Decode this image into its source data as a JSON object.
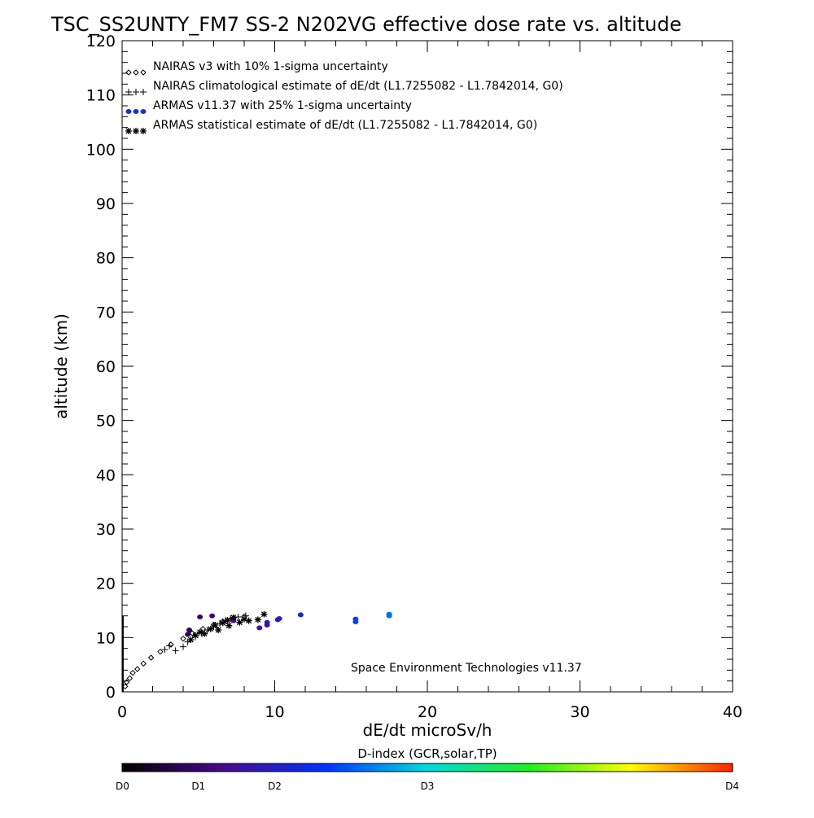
{
  "chart_data": {
    "type": "scatter",
    "title": "TSC_SS2UNTY_FM7 SS-2 N202VG effective dose rate vs. altitude",
    "xlabel": "dE/dt microSv/h",
    "ylabel": "altitude (km)",
    "xlim": [
      0,
      40
    ],
    "ylim": [
      0,
      120
    ],
    "x_ticks": [
      0,
      10,
      20,
      30,
      40
    ],
    "y_ticks": [
      0,
      10,
      20,
      30,
      40,
      50,
      60,
      70,
      80,
      90,
      100,
      110,
      120
    ],
    "grid": false,
    "legend_position": "top-left",
    "credit": "Space Environment Technologies v11.37",
    "legend": [
      {
        "label": "NAIRAS v3 with 10% 1-sigma uncertainty",
        "symbol": "diamond",
        "color": "#000000"
      },
      {
        "label": "NAIRAS climatological estimate of dE/dt (L1.7255082 - L1.7842014, G0)",
        "symbol": "plus",
        "color": "#000000"
      },
      {
        "label": "ARMAS v11.37 with 25% 1-sigma uncertainty",
        "symbol": "dot",
        "color": "#1a33cc"
      },
      {
        "label": "ARMAS statistical estimate of dE/dt (L1.7255082 - L1.7842014, G0)",
        "symbol": "asterisk",
        "color": "#000000"
      }
    ],
    "series": [
      {
        "name": "NAIRAS v3 with 10% 1-sigma uncertainty",
        "symbol": "diamond",
        "points": [
          [
            0.2,
            1.0
          ],
          [
            0.3,
            1.8
          ],
          [
            0.5,
            2.5
          ],
          [
            0.7,
            3.5
          ],
          [
            1.0,
            4.2
          ],
          [
            1.4,
            5.2
          ],
          [
            1.9,
            6.3
          ],
          [
            2.5,
            7.4
          ],
          [
            3.2,
            8.7
          ],
          [
            4.0,
            9.8
          ],
          [
            4.6,
            10.8
          ],
          [
            5.3,
            11.6
          ],
          [
            6.0,
            12.4
          ],
          [
            6.6,
            13.0
          ],
          [
            7.3,
            13.6
          ],
          [
            8.0,
            13.9
          ]
        ]
      },
      {
        "name": "NAIRAS climatological estimate of dE/dt (L1.7255082 - L1.7842014, G0)",
        "symbol": "plus",
        "points": [
          [
            2.8,
            7.8
          ],
          [
            3.1,
            8.5
          ],
          [
            3.5,
            7.6
          ],
          [
            4.0,
            8.3
          ],
          [
            4.3,
            9.2
          ],
          [
            4.8,
            10.1
          ],
          [
            5.2,
            10.8
          ],
          [
            5.6,
            11.4
          ],
          [
            6.0,
            12.0
          ],
          [
            6.4,
            12.6
          ],
          [
            6.8,
            13.1
          ],
          [
            7.1,
            13.5
          ],
          [
            7.6,
            13.8
          ],
          [
            8.1,
            14.0
          ]
        ]
      },
      {
        "name": "ARMAS v11.37 with 25% 1-sigma uncertainty",
        "symbol": "dot",
        "points": [
          [
            4.3,
            10.6
          ],
          [
            4.4,
            11.4
          ],
          [
            5.1,
            13.8
          ],
          [
            5.9,
            14.0
          ],
          [
            7.3,
            13.1
          ],
          [
            9.0,
            11.8
          ],
          [
            9.5,
            12.3
          ],
          [
            9.5,
            12.8
          ],
          [
            10.2,
            13.3
          ],
          [
            10.3,
            13.5
          ],
          [
            11.7,
            14.2
          ],
          [
            15.3,
            12.9
          ],
          [
            15.3,
            13.4
          ],
          [
            17.5,
            14.0
          ],
          [
            17.5,
            14.3
          ]
        ]
      },
      {
        "name": "ARMAS statistical estimate of dE/dt (L1.7255082 - L1.7842014, G0)",
        "symbol": "asterisk",
        "points": [
          [
            4.5,
            9.6
          ],
          [
            4.8,
            10.4
          ],
          [
            5.1,
            11.0
          ],
          [
            5.4,
            10.7
          ],
          [
            5.8,
            11.6
          ],
          [
            6.1,
            12.3
          ],
          [
            6.3,
            11.4
          ],
          [
            6.6,
            12.7
          ],
          [
            6.9,
            13.2
          ],
          [
            7.0,
            12.2
          ],
          [
            7.3,
            13.7
          ],
          [
            7.7,
            12.8
          ],
          [
            8.0,
            13.4
          ],
          [
            8.3,
            13.1
          ],
          [
            8.9,
            13.3
          ],
          [
            9.3,
            14.3
          ]
        ]
      }
    ],
    "colorbar": {
      "title": "D-index (GCR,solar,TP)",
      "range": [
        0,
        40
      ],
      "labels": [
        {
          "text": "D0",
          "value": 0
        },
        {
          "text": "D1",
          "value": 5
        },
        {
          "text": "D2",
          "value": 10
        },
        {
          "text": "D3",
          "value": 20
        },
        {
          "text": "D4",
          "value": 40
        }
      ],
      "stops": [
        "#000000",
        "#4a0a8c",
        "#0033ff",
        "#00dddd",
        "#22ee22",
        "#ffff00",
        "#ff2200"
      ]
    }
  }
}
